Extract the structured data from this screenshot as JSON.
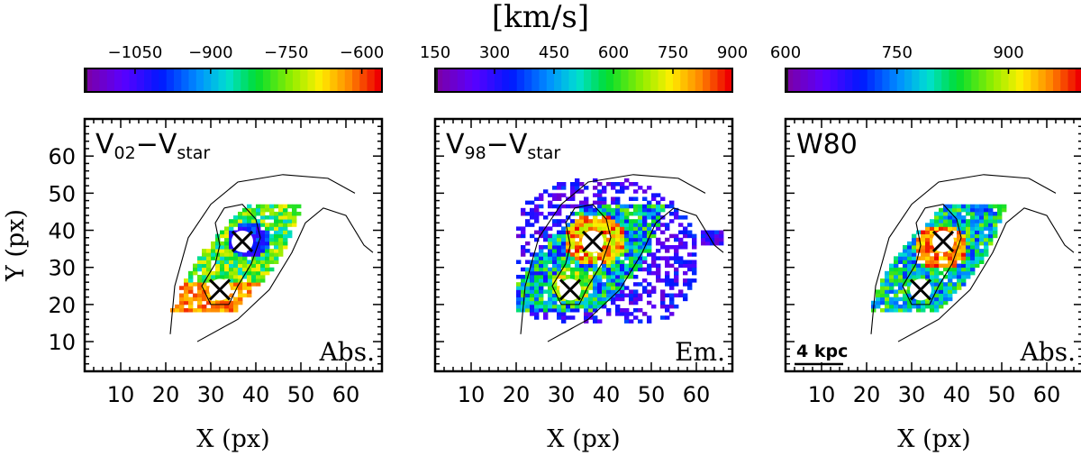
{
  "figure": {
    "unit_label": "[km/s]"
  },
  "chart_data": [
    {
      "type": "heatmap",
      "title_main": "V",
      "title_sub1": "02",
      "title_dash": "−V",
      "title_sub2": "star",
      "corner_label": "Abs.",
      "xlabel": "X (px)",
      "ylabel": "Y (px)",
      "xlim": [
        2,
        68
      ],
      "ylim": [
        2,
        70
      ],
      "xticks": [
        "10",
        "20",
        "30",
        "40",
        "50",
        "60"
      ],
      "yticks": [
        "10",
        "20",
        "30",
        "40",
        "50",
        "60"
      ],
      "colorbar": {
        "range": [
          -1150,
          -560
        ],
        "ticks": [
          "−1050",
          "−900",
          "−750",
          "−600"
        ],
        "tick_values": [
          -1050,
          -900,
          -750,
          -600
        ]
      },
      "markers": [
        {
          "x": 37,
          "y": 37
        },
        {
          "x": 32,
          "y": 24
        }
      ]
    },
    {
      "type": "heatmap",
      "title_main": "V",
      "title_sub1": "98",
      "title_dash": "−V",
      "title_sub2": "star",
      "corner_label": "Em.",
      "xlabel": "X (px)",
      "ylabel": "",
      "xlim": [
        2,
        68
      ],
      "ylim": [
        2,
        70
      ],
      "xticks": [
        "10",
        "20",
        "30",
        "40",
        "50",
        "60"
      ],
      "yticks": [],
      "colorbar": {
        "range": [
          150,
          900
        ],
        "ticks": [
          "150",
          "300",
          "450",
          "600",
          "750",
          "900"
        ],
        "tick_values": [
          150,
          300,
          450,
          600,
          750,
          900
        ]
      },
      "markers": [
        {
          "x": 37,
          "y": 37
        },
        {
          "x": 32,
          "y": 24
        }
      ]
    },
    {
      "type": "heatmap",
      "title_main": "W80",
      "title_sub1": "",
      "title_dash": "",
      "title_sub2": "",
      "corner_label": "Abs.",
      "scale_bar_label": "4 kpc",
      "xlabel": "X (px)",
      "ylabel": "",
      "xlim": [
        2,
        68
      ],
      "ylim": [
        2,
        70
      ],
      "xticks": [
        "10",
        "20",
        "30",
        "40",
        "50",
        "60"
      ],
      "yticks": [],
      "colorbar": {
        "range": [
          600,
          1000
        ],
        "ticks": [
          "600",
          "750",
          "900"
        ],
        "tick_values": [
          600,
          750,
          900
        ]
      },
      "markers": [
        {
          "x": 37,
          "y": 37
        },
        {
          "x": 32,
          "y": 24
        }
      ]
    }
  ]
}
